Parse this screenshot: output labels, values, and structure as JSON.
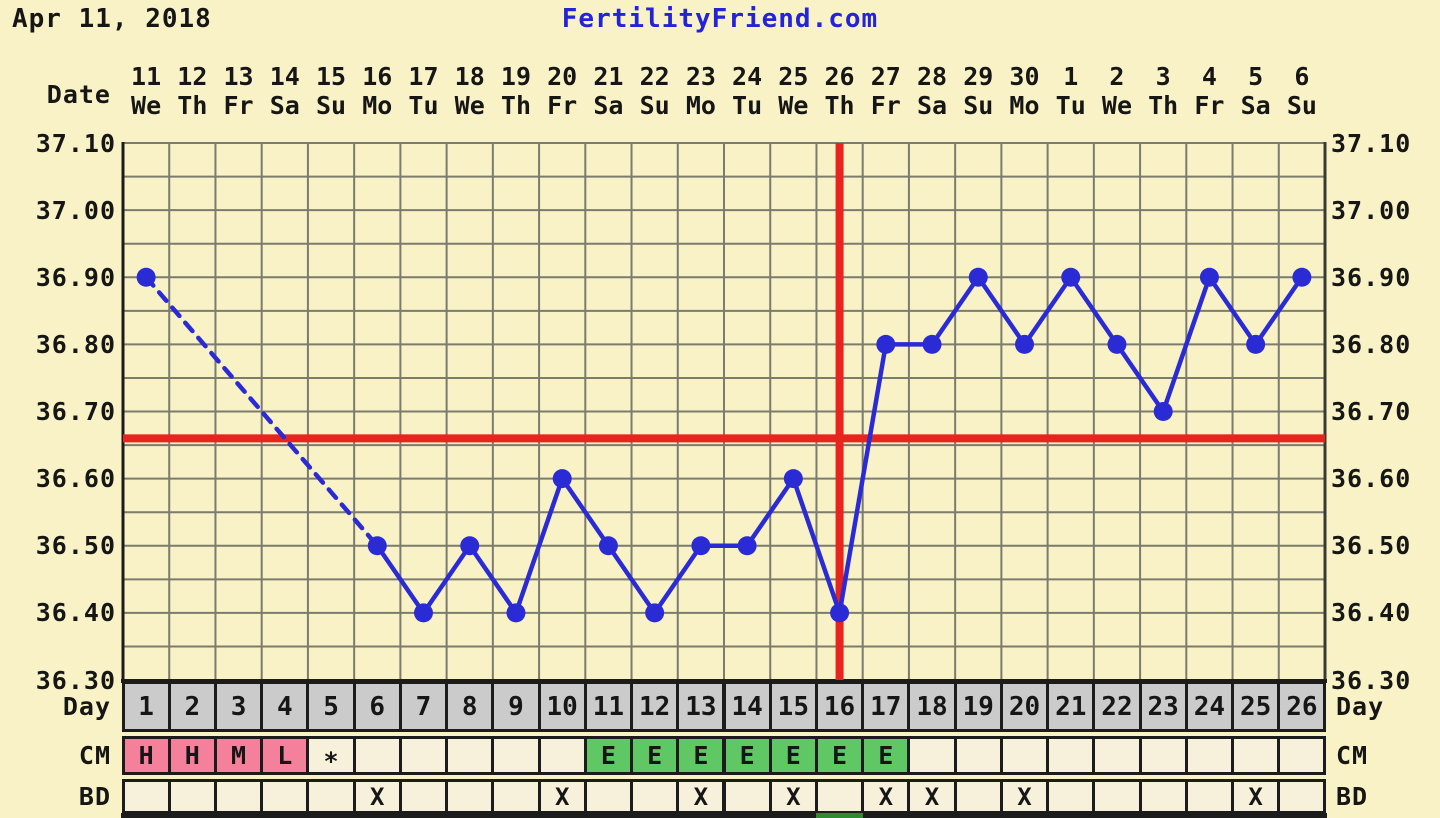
{
  "header": {
    "date": "Apr 11, 2018",
    "title": "FertilityFriend.com"
  },
  "axis": {
    "date_label": "Date",
    "day_label": "Day",
    "cm_label": "CM",
    "bd_label": "BD",
    "y_ticks": [
      "37.10",
      "37.00",
      "36.90",
      "36.80",
      "36.70",
      "36.60",
      "36.50",
      "36.40",
      "36.30"
    ]
  },
  "chart_data": {
    "type": "line",
    "title": "FertilityFriend.com",
    "x_dates": [
      "11",
      "12",
      "13",
      "14",
      "15",
      "16",
      "17",
      "18",
      "19",
      "20",
      "21",
      "22",
      "23",
      "24",
      "25",
      "26",
      "27",
      "28",
      "29",
      "30",
      "1",
      "2",
      "3",
      "4",
      "5",
      "6"
    ],
    "x_weekdays": [
      "We",
      "Th",
      "Fr",
      "Sa",
      "Su",
      "Mo",
      "Tu",
      "We",
      "Th",
      "Fr",
      "Sa",
      "Su",
      "Mo",
      "Tu",
      "We",
      "Th",
      "Fr",
      "Sa",
      "Su",
      "Mo",
      "Tu",
      "We",
      "Th",
      "Fr",
      "Sa",
      "Su"
    ],
    "cycle_days": [
      "1",
      "2",
      "3",
      "4",
      "5",
      "6",
      "7",
      "8",
      "9",
      "10",
      "11",
      "12",
      "13",
      "14",
      "15",
      "16",
      "17",
      "18",
      "19",
      "20",
      "21",
      "22",
      "23",
      "24",
      "25",
      "26"
    ],
    "temps_c": [
      36.9,
      null,
      null,
      null,
      null,
      36.5,
      36.4,
      36.5,
      36.4,
      36.6,
      36.5,
      36.4,
      36.5,
      36.5,
      36.6,
      36.4,
      36.8,
      36.8,
      36.9,
      36.8,
      36.9,
      36.8,
      36.7,
      36.9,
      36.8,
      36.9
    ],
    "ylim": [
      36.3,
      37.1
    ],
    "y_step": 0.05,
    "grid": true,
    "coverline_c": 36.66,
    "ovulation_cycle_day": 16,
    "cm_row": [
      {
        "day": 1,
        "value": "H",
        "color": "pink"
      },
      {
        "day": 2,
        "value": "H",
        "color": "pink"
      },
      {
        "day": 3,
        "value": "M",
        "color": "pink"
      },
      {
        "day": 4,
        "value": "L",
        "color": "pink"
      },
      {
        "day": 5,
        "value": "*",
        "color": "none"
      },
      {
        "day": 11,
        "value": "E",
        "color": "green"
      },
      {
        "day": 12,
        "value": "E",
        "color": "green"
      },
      {
        "day": 13,
        "value": "E",
        "color": "green"
      },
      {
        "day": 14,
        "value": "E",
        "color": "green"
      },
      {
        "day": 15,
        "value": "E",
        "color": "green"
      },
      {
        "day": 16,
        "value": "E",
        "color": "green"
      },
      {
        "day": 17,
        "value": "E",
        "color": "green"
      }
    ],
    "bd_mark": "X",
    "bd_days": [
      6,
      10,
      13,
      15,
      17,
      18,
      20,
      25
    ],
    "bottom_strip_green_day": 16
  },
  "colors": {
    "background": "#f8f2c6",
    "grid": "#7b7b6e",
    "axis": "#1c1c1c",
    "right_border": "#3a3a35",
    "temp_line": "#2b2bd5",
    "signal_red": "#e9231d",
    "title_blue": "#2323d7",
    "day_row_bg": "#cbcbcb",
    "row_bg": "#f7f0da",
    "cm_pink": "#f5809b",
    "cm_green": "#5fc763",
    "strip_green": "#2e8b2e",
    "text": "#161616"
  }
}
